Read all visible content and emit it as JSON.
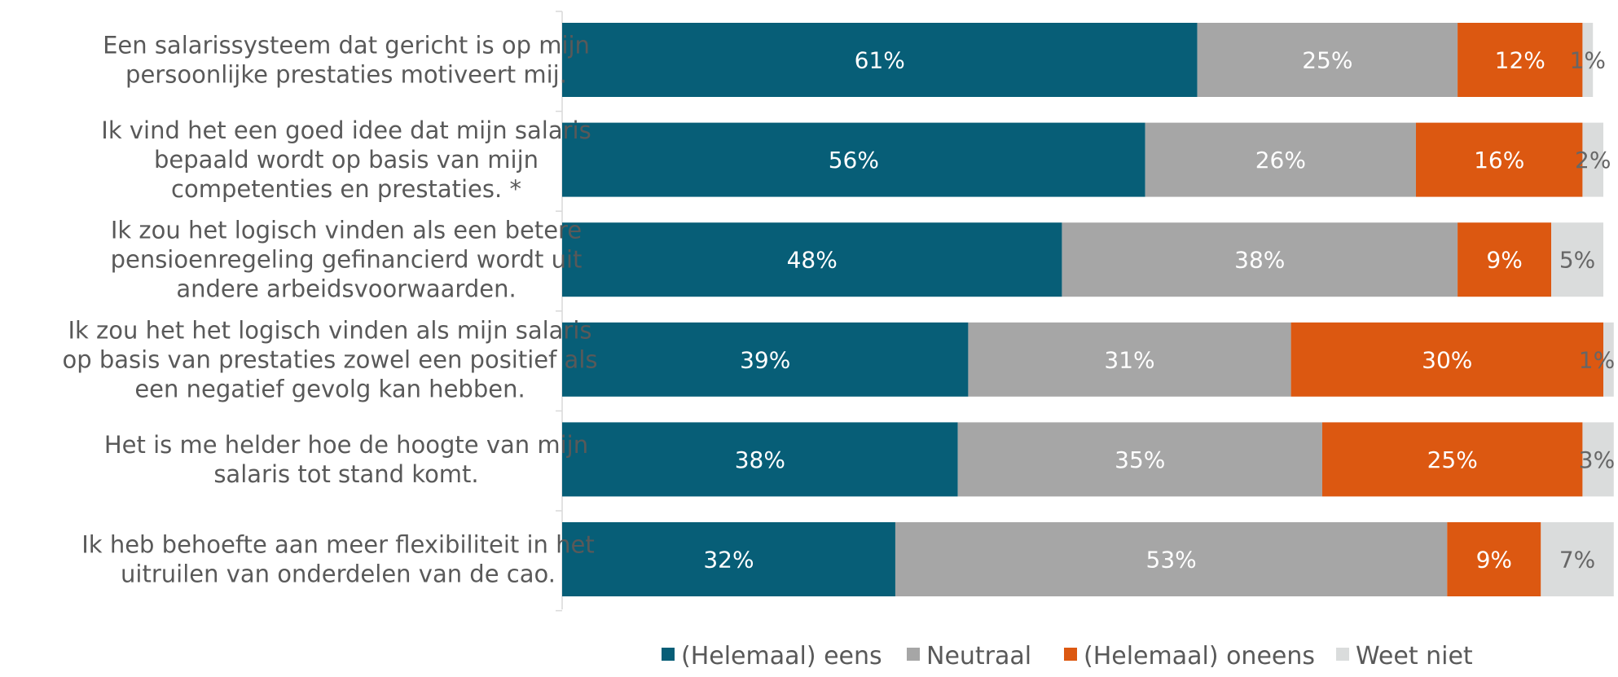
{
  "chart_data": {
    "type": "bar",
    "orientation": "horizontal",
    "stacked": true,
    "normalized": true,
    "categories": [
      [
        "Een salarissysteem dat gericht is op mijn",
        "persoonlijke prestaties motiveert mij."
      ],
      [
        "Ik vind het een goed idee dat mijn salaris",
        "bepaald wordt op basis van mijn",
        "competenties en prestaties. *"
      ],
      [
        "Ik zou het logisch vinden als een betere",
        "pensioenregeling gefinancierd wordt uit",
        "andere arbeidsvoorwaarden."
      ],
      [
        "Ik zou het het logisch vinden als mijn salaris",
        "op basis van prestaties zowel een positief als",
        "een negatief gevolg kan hebben."
      ],
      [
        "Het is me helder hoe de hoogte van mijn",
        "salaris tot stand komt."
      ],
      [
        "Ik heb behoefte aan meer flexibiliteit in het",
        "uitruilen van onderdelen van de cao."
      ]
    ],
    "series": [
      {
        "name": "(Helemaal) eens",
        "color": "#075e77",
        "label_color": "#ffffff",
        "values": [
          61,
          56,
          48,
          39,
          38,
          32
        ],
        "labels": [
          "61%",
          "56%",
          "48%",
          "39%",
          "38%",
          "32%"
        ]
      },
      {
        "name": "Neutraal",
        "color": "#a6a6a6",
        "label_color": "#ffffff",
        "values": [
          25,
          26,
          38,
          31,
          35,
          53
        ],
        "labels": [
          "25%",
          "26%",
          "38%",
          "31%",
          "35%",
          "53%"
        ]
      },
      {
        "name": "(Helemaal) oneens",
        "color": "#dc5811",
        "label_color": "#ffffff",
        "values": [
          12,
          16,
          9,
          30,
          25,
          9
        ],
        "labels": [
          "12%",
          "16%",
          "9%",
          "30%",
          "25%",
          "9%"
        ]
      },
      {
        "name": "Weet niet",
        "color": "#dadcdc",
        "label_color": "#666666",
        "values": [
          1,
          2,
          5,
          1,
          3,
          7
        ],
        "labels": [
          "1%",
          "2%",
          "5%",
          "1%",
          "3%",
          "7%"
        ]
      }
    ],
    "xlim": [
      0,
      100
    ],
    "legend": "bottom",
    "grid": false
  }
}
